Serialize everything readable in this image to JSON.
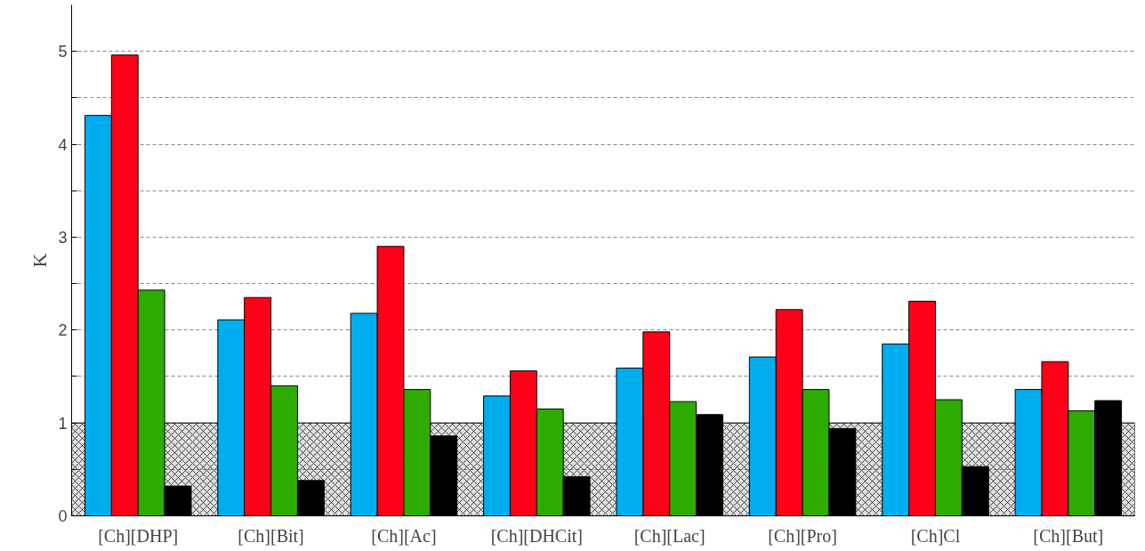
{
  "chart_data": {
    "type": "bar",
    "ylabel": "K",
    "categories": [
      "[Ch][DHP]",
      "[Ch][Bit]",
      "[Ch][Ac]",
      "[Ch][DHCit]",
      "[Ch][Lac]",
      "[Ch][Pro]",
      "[Ch]Cl",
      "[Ch][But]"
    ],
    "series": [
      {
        "color": "#00aeef",
        "values": [
          4.31,
          2.11,
          2.18,
          1.29,
          1.59,
          1.71,
          1.85,
          1.36
        ]
      },
      {
        "color": "#ff0019",
        "values": [
          4.96,
          2.35,
          2.9,
          1.56,
          1.98,
          2.22,
          2.31,
          1.66
        ]
      },
      {
        "color": "#2eab00",
        "values": [
          2.43,
          1.4,
          1.36,
          1.15,
          1.23,
          1.36,
          1.25,
          1.13
        ]
      },
      {
        "color": "#000000",
        "values": [
          0.32,
          0.38,
          0.86,
          0.42,
          1.09,
          0.94,
          0.53,
          1.24
        ]
      }
    ],
    "ylim": [
      0,
      5.5
    ],
    "yticks": [
      0,
      {
        "value": 0.5,
        "label": null
      },
      1,
      {
        "value": 1.5,
        "label": null
      },
      2,
      {
        "value": 2.5,
        "label": null
      },
      3,
      {
        "value": 3.5,
        "label": null
      },
      4,
      {
        "value": 4.5,
        "label": null
      },
      5
    ],
    "grid": "y",
    "bands": [
      {
        "axis": "y",
        "from": 0,
        "to": 1,
        "color": "#000000"
      }
    ]
  }
}
